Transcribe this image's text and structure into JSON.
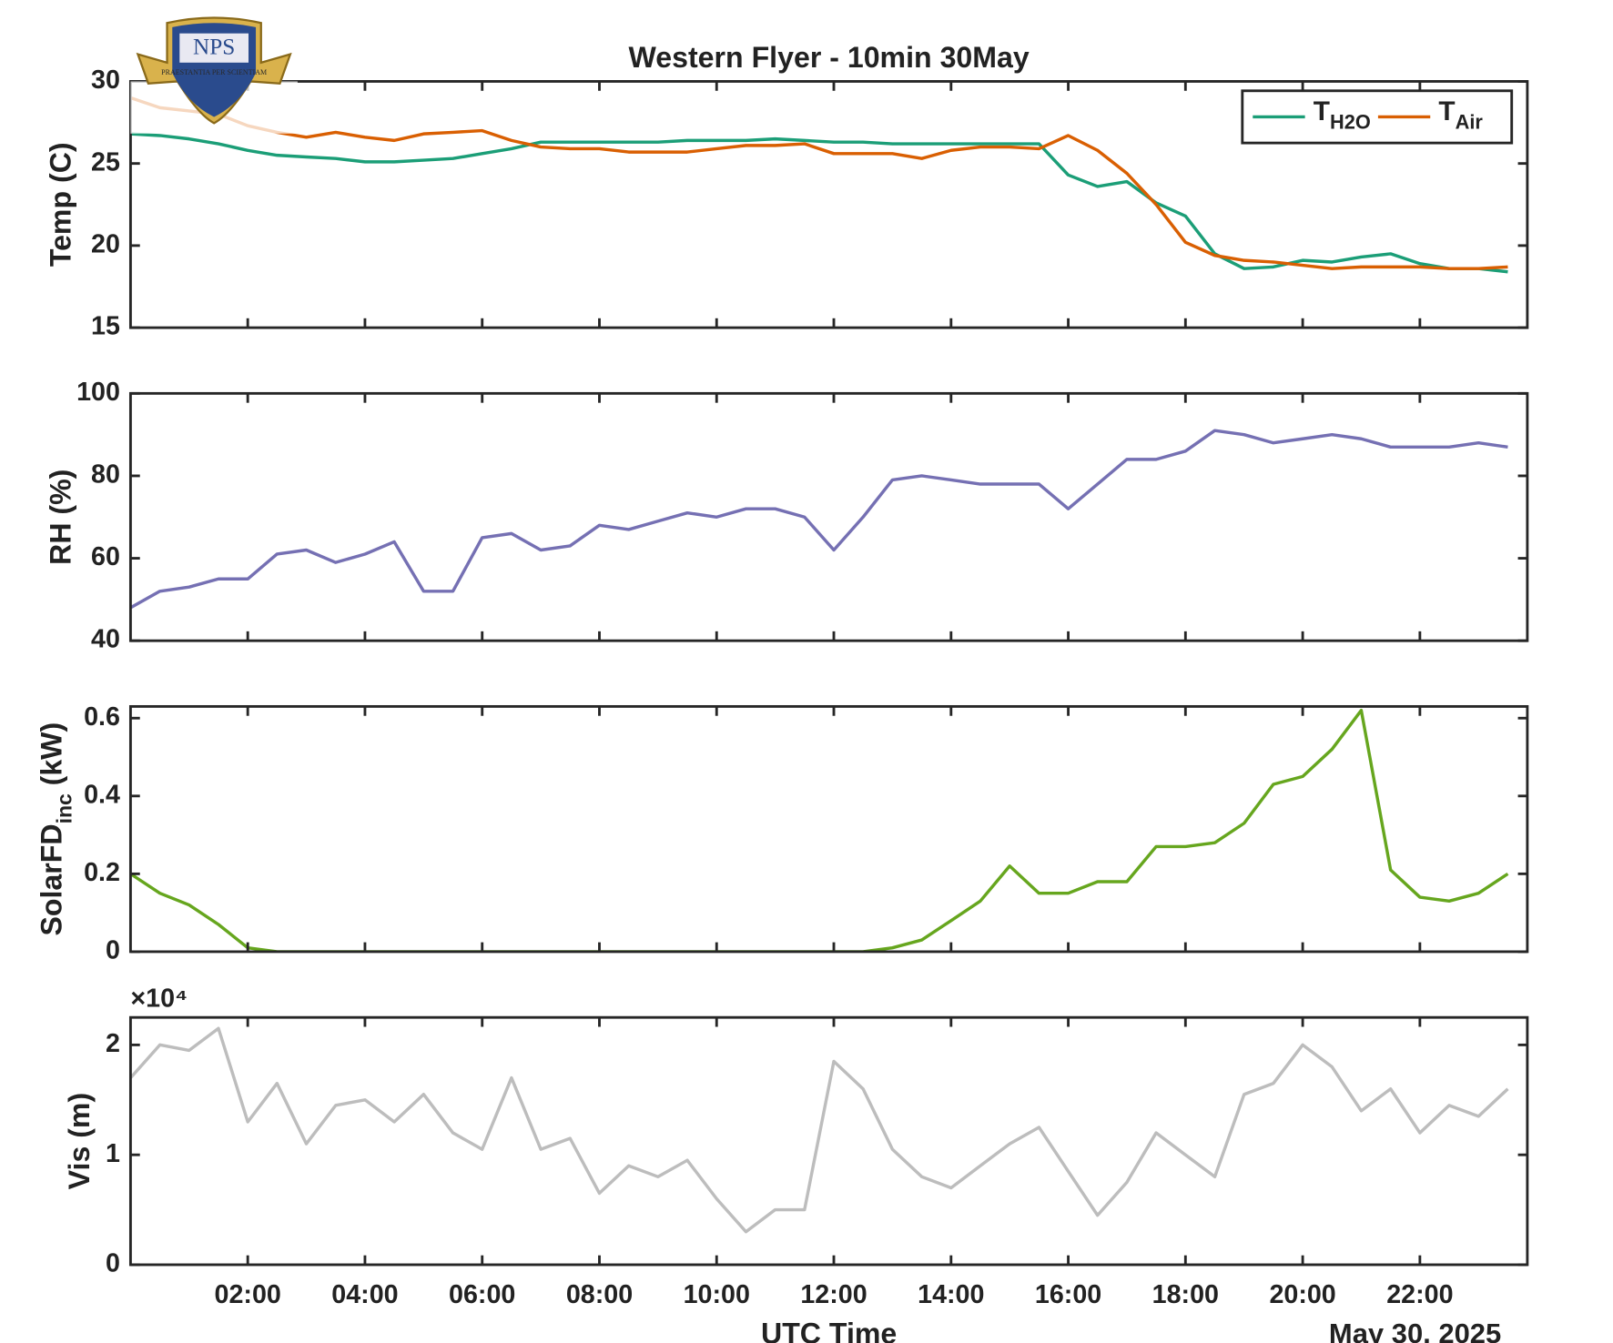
{
  "logo": {
    "text": "NPS",
    "motto": "PRAESTANTIA PER SCIENTIAM"
  },
  "chart_data": [
    {
      "type": "line",
      "title": "Western Flyer - 10min 30May",
      "ylabel": "Temp (C)",
      "x": [
        "00:00",
        "00:30",
        "01:00",
        "01:30",
        "02:00",
        "02:30",
        "03:00",
        "03:30",
        "04:00",
        "04:30",
        "05:00",
        "05:30",
        "06:00",
        "06:30",
        "07:00",
        "07:30",
        "08:00",
        "08:30",
        "09:00",
        "09:30",
        "10:00",
        "10:30",
        "11:00",
        "11:30",
        "12:00",
        "12:30",
        "13:00",
        "13:30",
        "14:00",
        "14:30",
        "15:00",
        "15:30",
        "16:00",
        "16:30",
        "17:00",
        "17:30",
        "18:00",
        "18:30",
        "19:00",
        "19:30",
        "20:00",
        "20:30",
        "21:00",
        "21:30",
        "22:00",
        "22:30",
        "23:00",
        "23:30"
      ],
      "xlim": [
        "00:00",
        "23:50"
      ],
      "xticks": [
        "02:00",
        "04:00",
        "06:00",
        "08:00",
        "10:00",
        "12:00",
        "14:00",
        "16:00",
        "18:00",
        "20:00",
        "22:00"
      ],
      "ylim": [
        15,
        30
      ],
      "yticks": [
        15,
        20,
        25,
        30
      ],
      "legend": "northeast",
      "series": [
        {
          "name": "TH2O",
          "color": "#1b9e77",
          "values": [
            26.8,
            26.7,
            26.5,
            26.2,
            25.8,
            25.5,
            25.4,
            25.3,
            25.1,
            25.1,
            25.2,
            25.3,
            25.6,
            25.9,
            26.3,
            26.3,
            26.3,
            26.3,
            26.3,
            26.4,
            26.4,
            26.4,
            26.5,
            26.4,
            26.3,
            26.3,
            26.2,
            26.2,
            26.2,
            26.2,
            26.2,
            26.2,
            24.3,
            23.6,
            23.9,
            22.6,
            21.8,
            19.5,
            18.6,
            18.7,
            19.1,
            19.0,
            19.3,
            19.5,
            18.9,
            18.6,
            18.6,
            18.4
          ]
        },
        {
          "name": "TAir",
          "color": "#d95f02",
          "values": [
            29.0,
            28.4,
            28.2,
            28.0,
            27.3,
            26.9,
            26.6,
            26.9,
            26.6,
            26.4,
            26.8,
            26.9,
            27.0,
            26.4,
            26.0,
            25.9,
            25.9,
            25.7,
            25.7,
            25.7,
            25.9,
            26.1,
            26.1,
            26.2,
            25.6,
            25.6,
            25.6,
            25.3,
            25.8,
            26.0,
            26.0,
            25.9,
            26.7,
            25.8,
            24.4,
            22.5,
            20.2,
            19.4,
            19.1,
            19.0,
            18.8,
            18.6,
            18.7,
            18.7,
            18.7,
            18.6,
            18.6,
            18.7
          ]
        }
      ]
    },
    {
      "type": "line",
      "ylabel": "RH (%)",
      "x": [
        "00:00",
        "00:30",
        "01:00",
        "01:30",
        "02:00",
        "02:30",
        "03:00",
        "03:30",
        "04:00",
        "04:30",
        "05:00",
        "05:30",
        "06:00",
        "06:30",
        "07:00",
        "07:30",
        "08:00",
        "08:30",
        "09:00",
        "09:30",
        "10:00",
        "10:30",
        "11:00",
        "11:30",
        "12:00",
        "12:30",
        "13:00",
        "13:30",
        "14:00",
        "14:30",
        "15:00",
        "15:30",
        "16:00",
        "16:30",
        "17:00",
        "17:30",
        "18:00",
        "18:30",
        "19:00",
        "19:30",
        "20:00",
        "20:30",
        "21:00",
        "21:30",
        "22:00",
        "22:30",
        "23:00",
        "23:30"
      ],
      "xlim": [
        "00:00",
        "23:50"
      ],
      "xticks": [
        "02:00",
        "04:00",
        "06:00",
        "08:00",
        "10:00",
        "12:00",
        "14:00",
        "16:00",
        "18:00",
        "20:00",
        "22:00"
      ],
      "ylim": [
        40,
        100
      ],
      "yticks": [
        40,
        60,
        80,
        100
      ],
      "series": [
        {
          "name": "RH",
          "color": "#7570b3",
          "values": [
            48,
            52,
            53,
            55,
            55,
            61,
            62,
            59,
            61,
            64,
            52,
            52,
            65,
            66,
            62,
            63,
            68,
            67,
            69,
            71,
            70,
            72,
            72,
            70,
            62,
            70,
            79,
            80,
            79,
            78,
            78,
            78,
            72,
            78,
            84,
            84,
            86,
            91,
            90,
            88,
            89,
            90,
            89,
            87,
            87,
            87,
            88,
            87
          ]
        }
      ]
    },
    {
      "type": "line",
      "ylabel": [
        "SolarFD",
        "inc",
        " (kW)"
      ],
      "x": [
        "00:00",
        "00:30",
        "01:00",
        "01:30",
        "02:00",
        "02:30",
        "03:00",
        "03:30",
        "04:00",
        "04:30",
        "05:00",
        "05:30",
        "06:00",
        "06:30",
        "07:00",
        "07:30",
        "08:00",
        "08:30",
        "09:00",
        "09:30",
        "10:00",
        "10:30",
        "11:00",
        "11:30",
        "12:00",
        "12:30",
        "13:00",
        "13:30",
        "14:00",
        "14:30",
        "15:00",
        "15:30",
        "16:00",
        "16:30",
        "17:00",
        "17:30",
        "18:00",
        "18:30",
        "19:00",
        "19:30",
        "20:00",
        "20:30",
        "21:00",
        "21:30",
        "22:00",
        "22:30",
        "23:00",
        "23:30"
      ],
      "xlim": [
        "00:00",
        "23:50"
      ],
      "xticks": [
        "02:00",
        "04:00",
        "06:00",
        "08:00",
        "10:00",
        "12:00",
        "14:00",
        "16:00",
        "18:00",
        "20:00",
        "22:00"
      ],
      "ylim": [
        0,
        0.63
      ],
      "yticks": [
        0,
        0.2,
        0.4,
        0.6
      ],
      "series": [
        {
          "name": "SolarFD",
          "color": "#66a61e",
          "values": [
            0.2,
            0.15,
            0.12,
            0.07,
            0.01,
            0,
            0,
            0,
            0,
            0,
            0,
            0,
            0,
            0,
            0,
            0,
            0,
            0,
            0,
            0,
            0,
            0,
            0,
            0,
            0,
            0,
            0.01,
            0.03,
            0.08,
            0.13,
            0.22,
            0.15,
            0.15,
            0.18,
            0.18,
            0.27,
            0.27,
            0.28,
            0.33,
            0.43,
            0.45,
            0.52,
            0.62,
            0.21,
            0.14,
            0.13,
            0.15,
            0.2
          ]
        }
      ]
    },
    {
      "type": "line",
      "ylabel": "Vis (m)",
      "xlabel": "UTC Time",
      "date_label": "May 30, 2025",
      "y_multiplier": "×10⁴",
      "x": [
        "00:00",
        "00:30",
        "01:00",
        "01:30",
        "02:00",
        "02:30",
        "03:00",
        "03:30",
        "04:00",
        "04:30",
        "05:00",
        "05:30",
        "06:00",
        "06:30",
        "07:00",
        "07:30",
        "08:00",
        "08:30",
        "09:00",
        "09:30",
        "10:00",
        "10:30",
        "11:00",
        "11:30",
        "12:00",
        "12:30",
        "13:00",
        "13:30",
        "14:00",
        "14:30",
        "15:00",
        "15:30",
        "16:00",
        "16:30",
        "17:00",
        "17:30",
        "18:00",
        "18:30",
        "19:00",
        "19:30",
        "20:00",
        "20:30",
        "21:00",
        "21:30",
        "22:00",
        "22:30",
        "23:00",
        "23:30"
      ],
      "xlim": [
        "00:00",
        "23:50"
      ],
      "xticks": [
        "02:00",
        "04:00",
        "06:00",
        "08:00",
        "10:00",
        "12:00",
        "14:00",
        "16:00",
        "18:00",
        "20:00",
        "22:00"
      ],
      "ylim": [
        0,
        22500
      ],
      "yticks": [
        0,
        {
          "value": 10000,
          "label": "1"
        },
        {
          "value": 20000,
          "label": "2"
        }
      ],
      "series": [
        {
          "name": "Vis",
          "color": "#bdbdbd",
          "values": [
            17000,
            20000,
            19500,
            21500,
            13000,
            16500,
            11000,
            14500,
            15000,
            13000,
            15500,
            12000,
            10500,
            17000,
            10500,
            11500,
            6500,
            9000,
            8000,
            9500,
            6000,
            3000,
            5000,
            5000,
            18500,
            16000,
            10500,
            8000,
            7000,
            9000,
            11000,
            12500,
            8500,
            4500,
            7500,
            12000,
            10000,
            8000,
            15500,
            16500,
            20000,
            18000,
            14000,
            16000,
            12000,
            14500,
            13500,
            16000
          ]
        }
      ]
    }
  ]
}
